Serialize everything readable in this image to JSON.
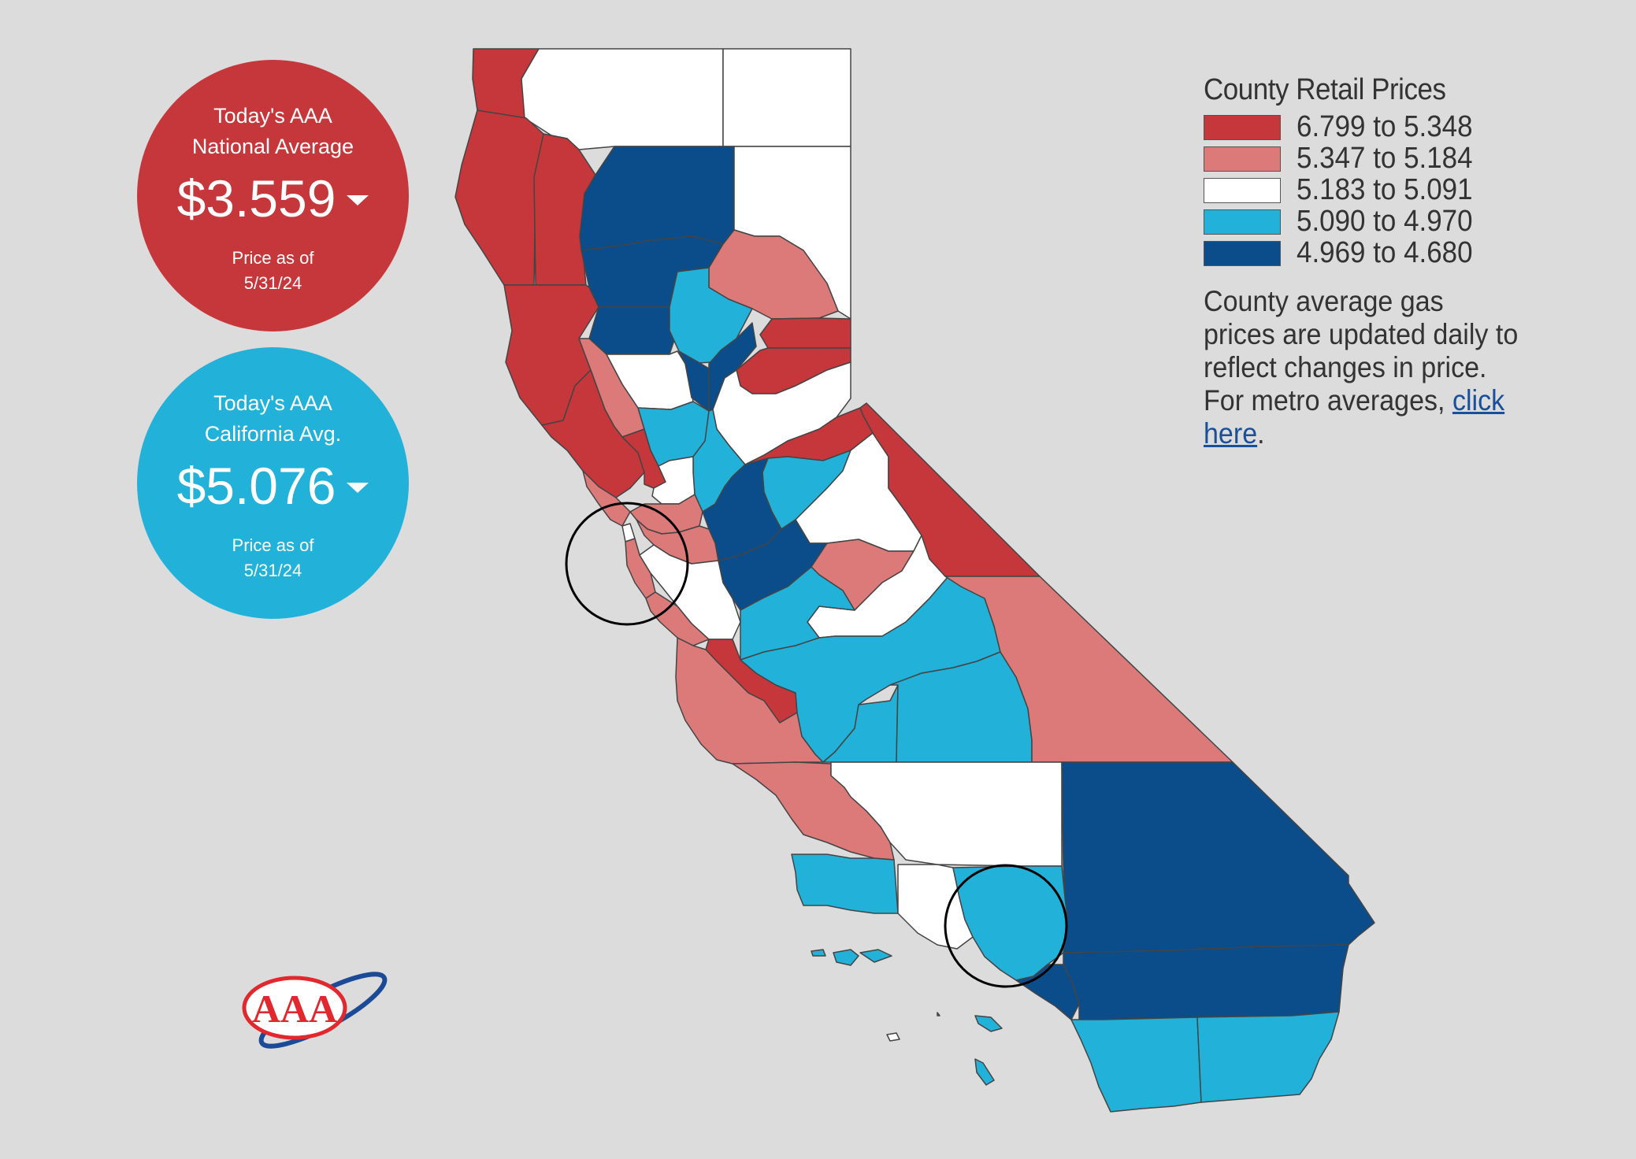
{
  "national": {
    "label_line1": "Today's AAA",
    "label_line2": "National Average",
    "price": "$3.559",
    "asof_line1": "Price as of",
    "asof_line2": "5/31/24",
    "color": "#c6373b"
  },
  "state": {
    "label_line1": "Today's AAA",
    "label_line2": "California Avg.",
    "price": "$5.076",
    "asof_line1": "Price as of",
    "asof_line2": "5/31/24",
    "color": "#22b1d8"
  },
  "legend": {
    "title": "County Retail Prices",
    "ranges": [
      {
        "label": "6.799 to 5.348",
        "color": "#c6373b"
      },
      {
        "label": "5.347 to 5.184",
        "color": "#dc7a79"
      },
      {
        "label": "5.183 to 5.091",
        "color": "#ffffff"
      },
      {
        "label": "5.090 to 4.970",
        "color": "#22b1d8"
      },
      {
        "label": "4.969 to 4.680",
        "color": "#0a4d8a"
      }
    ],
    "note_text": "County average gas prices are updated daily to reflect changes in price. For metro averages,",
    "link_text": "click here",
    "note_end": "."
  },
  "logo": {
    "text": "AAA"
  }
}
